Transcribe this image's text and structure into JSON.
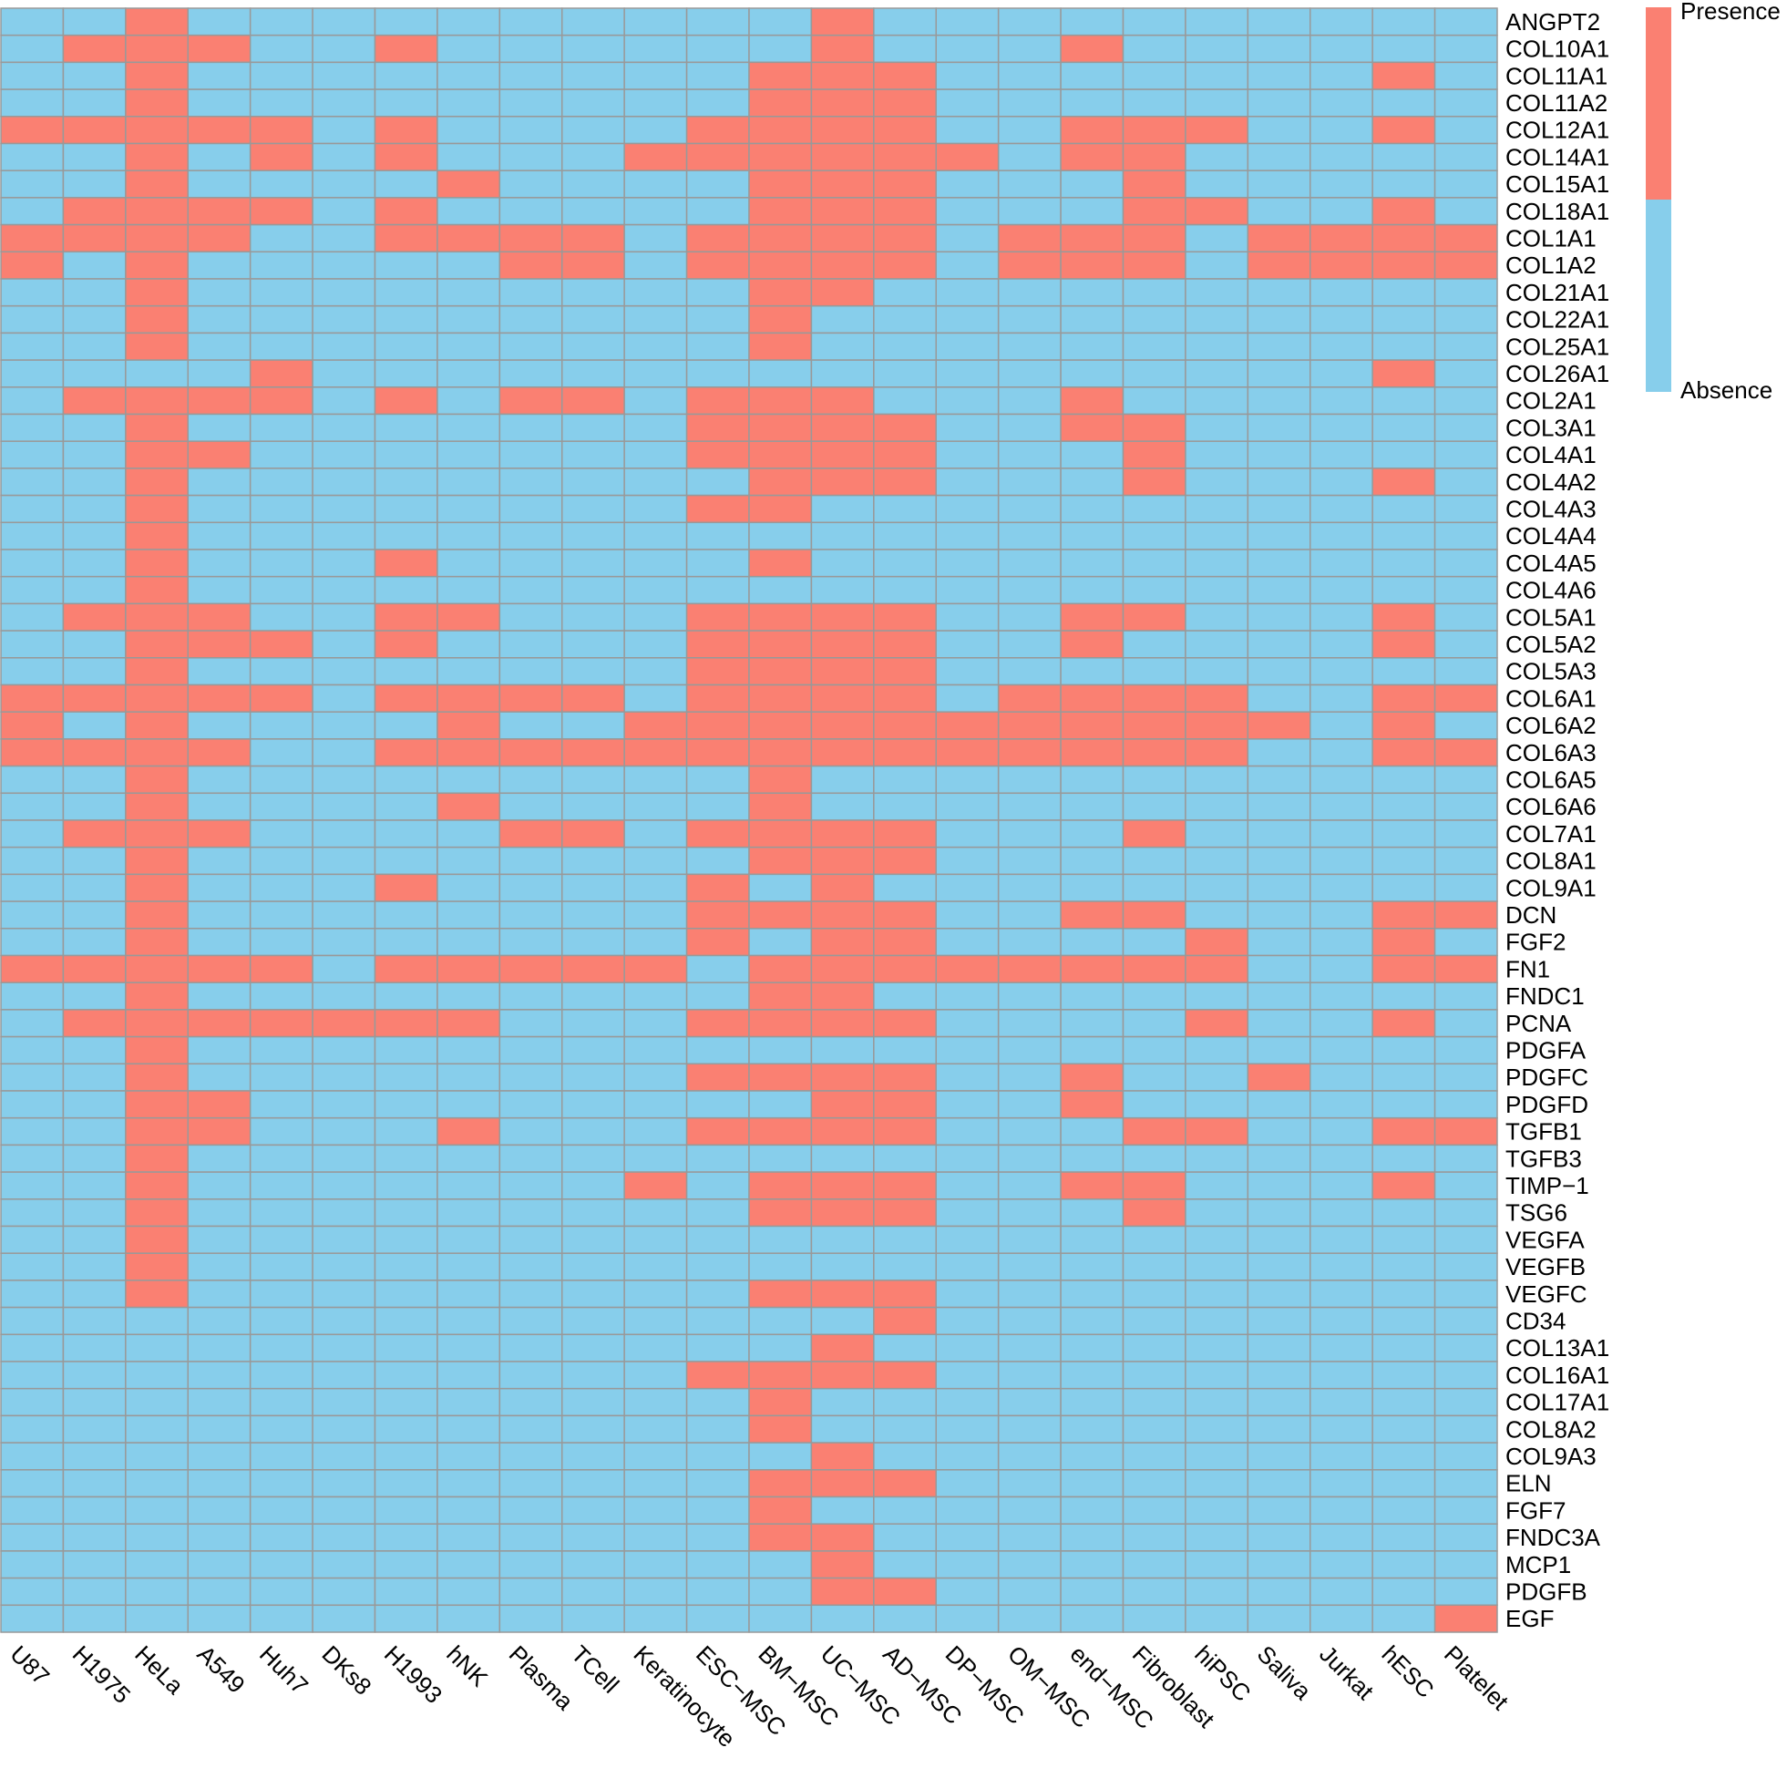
{
  "chart_data": {
    "type": "heatmap",
    "title": "",
    "xlabel": "",
    "ylabel": "",
    "columns": [
      "U87",
      "H1975",
      "HeLa",
      "A549",
      "Huh7",
      "DKs8",
      "H1993",
      "hNK",
      "Plasma",
      "TCell",
      "Keratinocyte",
      "ESC−MSC",
      "BM−MSC",
      "UC−MSC",
      "AD−MSC",
      "DP−MSC",
      "OM−MSC",
      "end−MSC",
      "Fibroblast",
      "hiPSC",
      "Saliva",
      "Jurkat",
      "hESC",
      "Platelet"
    ],
    "rows": [
      "ANGPT2",
      "COL10A1",
      "COL11A1",
      "COL11A2",
      "COL12A1",
      "COL14A1",
      "COL15A1",
      "COL18A1",
      "COL1A1",
      "COL1A2",
      "COL21A1",
      "COL22A1",
      "COL25A1",
      "COL26A1",
      "COL2A1",
      "COL3A1",
      "COL4A1",
      "COL4A2",
      "COL4A3",
      "COL4A4",
      "COL4A5",
      "COL4A6",
      "COL5A1",
      "COL5A2",
      "COL5A3",
      "COL6A1",
      "COL6A2",
      "COL6A3",
      "COL6A5",
      "COL6A6",
      "COL7A1",
      "COL8A1",
      "COL9A1",
      "DCN",
      "FGF2",
      "FN1",
      "FNDC1",
      "PCNA",
      "PDGFA",
      "PDGFC",
      "PDGFD",
      "TGFB1",
      "TGFB3",
      "TIMP−1",
      "TSG6",
      "VEGFA",
      "VEGFB",
      "VEGFC",
      "CD34",
      "COL13A1",
      "COL16A1",
      "COL17A1",
      "COL8A2",
      "COL9A3",
      "ELN",
      "FGF7",
      "FNDC3A",
      "MCP1",
      "PDGFB",
      "EGF"
    ],
    "values": [
      [
        0,
        0,
        1,
        0,
        0,
        0,
        0,
        0,
        0,
        0,
        0,
        0,
        0,
        1,
        0,
        0,
        0,
        0,
        0,
        0,
        0,
        0,
        0,
        0
      ],
      [
        0,
        1,
        1,
        1,
        0,
        0,
        1,
        0,
        0,
        0,
        0,
        0,
        0,
        1,
        0,
        0,
        0,
        1,
        0,
        0,
        0,
        0,
        0,
        0
      ],
      [
        0,
        0,
        1,
        0,
        0,
        0,
        0,
        0,
        0,
        0,
        0,
        0,
        1,
        1,
        1,
        0,
        0,
        0,
        0,
        0,
        0,
        0,
        1,
        0
      ],
      [
        0,
        0,
        1,
        0,
        0,
        0,
        0,
        0,
        0,
        0,
        0,
        0,
        1,
        1,
        1,
        0,
        0,
        0,
        0,
        0,
        0,
        0,
        0,
        0
      ],
      [
        1,
        1,
        1,
        1,
        1,
        0,
        1,
        0,
        0,
        0,
        0,
        1,
        1,
        1,
        1,
        0,
        0,
        1,
        1,
        1,
        0,
        0,
        1,
        0
      ],
      [
        0,
        0,
        1,
        0,
        1,
        0,
        1,
        0,
        0,
        0,
        1,
        1,
        1,
        1,
        1,
        1,
        0,
        1,
        1,
        0,
        0,
        0,
        0,
        0
      ],
      [
        0,
        0,
        1,
        0,
        0,
        0,
        0,
        1,
        0,
        0,
        0,
        0,
        1,
        1,
        1,
        0,
        0,
        0,
        1,
        0,
        0,
        0,
        0,
        0
      ],
      [
        0,
        1,
        1,
        1,
        1,
        0,
        1,
        0,
        0,
        0,
        0,
        0,
        1,
        1,
        1,
        0,
        0,
        0,
        1,
        1,
        0,
        0,
        1,
        0
      ],
      [
        1,
        1,
        1,
        1,
        0,
        0,
        1,
        1,
        1,
        1,
        0,
        1,
        1,
        1,
        1,
        0,
        1,
        1,
        1,
        0,
        1,
        1,
        1,
        1
      ],
      [
        1,
        0,
        1,
        0,
        0,
        0,
        0,
        0,
        1,
        1,
        0,
        1,
        1,
        1,
        1,
        0,
        1,
        1,
        1,
        0,
        1,
        1,
        1,
        1
      ],
      [
        0,
        0,
        1,
        0,
        0,
        0,
        0,
        0,
        0,
        0,
        0,
        0,
        1,
        1,
        0,
        0,
        0,
        0,
        0,
        0,
        0,
        0,
        0,
        0
      ],
      [
        0,
        0,
        1,
        0,
        0,
        0,
        0,
        0,
        0,
        0,
        0,
        0,
        1,
        0,
        0,
        0,
        0,
        0,
        0,
        0,
        0,
        0,
        0,
        0
      ],
      [
        0,
        0,
        1,
        0,
        0,
        0,
        0,
        0,
        0,
        0,
        0,
        0,
        1,
        0,
        0,
        0,
        0,
        0,
        0,
        0,
        0,
        0,
        0,
        0
      ],
      [
        0,
        0,
        0,
        0,
        1,
        0,
        0,
        0,
        0,
        0,
        0,
        0,
        0,
        0,
        0,
        0,
        0,
        0,
        0,
        0,
        0,
        0,
        1,
        0
      ],
      [
        0,
        1,
        1,
        1,
        1,
        0,
        1,
        0,
        1,
        1,
        0,
        1,
        1,
        1,
        0,
        0,
        0,
        1,
        0,
        0,
        0,
        0,
        0,
        0
      ],
      [
        0,
        0,
        1,
        0,
        0,
        0,
        0,
        0,
        0,
        0,
        0,
        1,
        1,
        1,
        1,
        0,
        0,
        1,
        1,
        0,
        0,
        0,
        0,
        0
      ],
      [
        0,
        0,
        1,
        1,
        0,
        0,
        0,
        0,
        0,
        0,
        0,
        1,
        1,
        1,
        1,
        0,
        0,
        0,
        1,
        0,
        0,
        0,
        0,
        0
      ],
      [
        0,
        0,
        1,
        0,
        0,
        0,
        0,
        0,
        0,
        0,
        0,
        0,
        1,
        1,
        1,
        0,
        0,
        0,
        1,
        0,
        0,
        0,
        1,
        0
      ],
      [
        0,
        0,
        1,
        0,
        0,
        0,
        0,
        0,
        0,
        0,
        0,
        1,
        1,
        0,
        0,
        0,
        0,
        0,
        0,
        0,
        0,
        0,
        0,
        0
      ],
      [
        0,
        0,
        1,
        0,
        0,
        0,
        0,
        0,
        0,
        0,
        0,
        0,
        0,
        0,
        0,
        0,
        0,
        0,
        0,
        0,
        0,
        0,
        0,
        0
      ],
      [
        0,
        0,
        1,
        0,
        0,
        0,
        1,
        0,
        0,
        0,
        0,
        0,
        1,
        0,
        0,
        0,
        0,
        0,
        0,
        0,
        0,
        0,
        0,
        0
      ],
      [
        0,
        0,
        1,
        0,
        0,
        0,
        0,
        0,
        0,
        0,
        0,
        0,
        0,
        0,
        0,
        0,
        0,
        0,
        0,
        0,
        0,
        0,
        0,
        0
      ],
      [
        0,
        1,
        1,
        1,
        0,
        0,
        1,
        1,
        0,
        0,
        0,
        1,
        1,
        1,
        1,
        0,
        0,
        1,
        1,
        0,
        0,
        0,
        1,
        0
      ],
      [
        0,
        0,
        1,
        1,
        1,
        0,
        1,
        0,
        0,
        0,
        0,
        1,
        1,
        1,
        1,
        0,
        0,
        1,
        0,
        0,
        0,
        0,
        1,
        0
      ],
      [
        0,
        0,
        1,
        0,
        0,
        0,
        0,
        0,
        0,
        0,
        0,
        1,
        1,
        1,
        1,
        0,
        0,
        0,
        0,
        0,
        0,
        0,
        0,
        0
      ],
      [
        1,
        1,
        1,
        1,
        1,
        0,
        1,
        1,
        1,
        1,
        0,
        1,
        1,
        1,
        1,
        0,
        1,
        1,
        1,
        1,
        0,
        0,
        1,
        1
      ],
      [
        1,
        0,
        1,
        0,
        0,
        0,
        0,
        1,
        0,
        0,
        1,
        1,
        1,
        1,
        1,
        1,
        1,
        1,
        1,
        1,
        1,
        0,
        1,
        0
      ],
      [
        1,
        1,
        1,
        1,
        0,
        0,
        1,
        1,
        1,
        1,
        1,
        1,
        1,
        1,
        1,
        1,
        1,
        1,
        1,
        1,
        0,
        0,
        1,
        1
      ],
      [
        0,
        0,
        1,
        0,
        0,
        0,
        0,
        0,
        0,
        0,
        0,
        0,
        1,
        0,
        0,
        0,
        0,
        0,
        0,
        0,
        0,
        0,
        0,
        0
      ],
      [
        0,
        0,
        1,
        0,
        0,
        0,
        0,
        1,
        0,
        0,
        0,
        0,
        1,
        0,
        0,
        0,
        0,
        0,
        0,
        0,
        0,
        0,
        0,
        0
      ],
      [
        0,
        1,
        1,
        1,
        0,
        0,
        0,
        0,
        1,
        1,
        0,
        1,
        1,
        1,
        1,
        0,
        0,
        0,
        1,
        0,
        0,
        0,
        0,
        0
      ],
      [
        0,
        0,
        1,
        0,
        0,
        0,
        0,
        0,
        0,
        0,
        0,
        0,
        1,
        1,
        1,
        0,
        0,
        0,
        0,
        0,
        0,
        0,
        0,
        0
      ],
      [
        0,
        0,
        1,
        0,
        0,
        0,
        1,
        0,
        0,
        0,
        0,
        1,
        0,
        1,
        0,
        0,
        0,
        0,
        0,
        0,
        0,
        0,
        0,
        0
      ],
      [
        0,
        0,
        1,
        0,
        0,
        0,
        0,
        0,
        0,
        0,
        0,
        1,
        1,
        1,
        1,
        0,
        0,
        1,
        1,
        0,
        0,
        0,
        1,
        1
      ],
      [
        0,
        0,
        1,
        0,
        0,
        0,
        0,
        0,
        0,
        0,
        0,
        1,
        0,
        1,
        1,
        0,
        0,
        0,
        0,
        1,
        0,
        0,
        1,
        0
      ],
      [
        1,
        1,
        1,
        1,
        1,
        0,
        1,
        1,
        1,
        1,
        1,
        0,
        1,
        1,
        1,
        1,
        1,
        1,
        1,
        1,
        0,
        0,
        1,
        1
      ],
      [
        0,
        0,
        1,
        0,
        0,
        0,
        0,
        0,
        0,
        0,
        0,
        0,
        1,
        1,
        0,
        0,
        0,
        0,
        0,
        0,
        0,
        0,
        0,
        0
      ],
      [
        0,
        1,
        1,
        1,
        1,
        1,
        1,
        1,
        0,
        0,
        0,
        1,
        1,
        1,
        1,
        0,
        0,
        0,
        0,
        1,
        0,
        0,
        1,
        0
      ],
      [
        0,
        0,
        1,
        0,
        0,
        0,
        0,
        0,
        0,
        0,
        0,
        0,
        0,
        0,
        0,
        0,
        0,
        0,
        0,
        0,
        0,
        0,
        0,
        0
      ],
      [
        0,
        0,
        1,
        0,
        0,
        0,
        0,
        0,
        0,
        0,
        0,
        1,
        1,
        1,
        1,
        0,
        0,
        1,
        0,
        0,
        1,
        0,
        0,
        0
      ],
      [
        0,
        0,
        1,
        1,
        0,
        0,
        0,
        0,
        0,
        0,
        0,
        0,
        0,
        1,
        1,
        0,
        0,
        1,
        0,
        0,
        0,
        0,
        0,
        0
      ],
      [
        0,
        0,
        1,
        1,
        0,
        0,
        0,
        1,
        0,
        0,
        0,
        1,
        1,
        1,
        1,
        0,
        0,
        0,
        1,
        1,
        0,
        0,
        1,
        1
      ],
      [
        0,
        0,
        1,
        0,
        0,
        0,
        0,
        0,
        0,
        0,
        0,
        0,
        0,
        0,
        0,
        0,
        0,
        0,
        0,
        0,
        0,
        0,
        0,
        0
      ],
      [
        0,
        0,
        1,
        0,
        0,
        0,
        0,
        0,
        0,
        0,
        1,
        0,
        1,
        1,
        1,
        0,
        0,
        1,
        1,
        0,
        0,
        0,
        1,
        0
      ],
      [
        0,
        0,
        1,
        0,
        0,
        0,
        0,
        0,
        0,
        0,
        0,
        0,
        1,
        1,
        1,
        0,
        0,
        0,
        1,
        0,
        0,
        0,
        0,
        0
      ],
      [
        0,
        0,
        1,
        0,
        0,
        0,
        0,
        0,
        0,
        0,
        0,
        0,
        0,
        0,
        0,
        0,
        0,
        0,
        0,
        0,
        0,
        0,
        0,
        0
      ],
      [
        0,
        0,
        1,
        0,
        0,
        0,
        0,
        0,
        0,
        0,
        0,
        0,
        0,
        0,
        0,
        0,
        0,
        0,
        0,
        0,
        0,
        0,
        0,
        0
      ],
      [
        0,
        0,
        1,
        0,
        0,
        0,
        0,
        0,
        0,
        0,
        0,
        0,
        1,
        1,
        1,
        0,
        0,
        0,
        0,
        0,
        0,
        0,
        0,
        0
      ],
      [
        0,
        0,
        0,
        0,
        0,
        0,
        0,
        0,
        0,
        0,
        0,
        0,
        0,
        0,
        1,
        0,
        0,
        0,
        0,
        0,
        0,
        0,
        0,
        0
      ],
      [
        0,
        0,
        0,
        0,
        0,
        0,
        0,
        0,
        0,
        0,
        0,
        0,
        0,
        1,
        0,
        0,
        0,
        0,
        0,
        0,
        0,
        0,
        0,
        0
      ],
      [
        0,
        0,
        0,
        0,
        0,
        0,
        0,
        0,
        0,
        0,
        0,
        1,
        1,
        1,
        1,
        0,
        0,
        0,
        0,
        0,
        0,
        0,
        0,
        0
      ],
      [
        0,
        0,
        0,
        0,
        0,
        0,
        0,
        0,
        0,
        0,
        0,
        0,
        1,
        0,
        0,
        0,
        0,
        0,
        0,
        0,
        0,
        0,
        0,
        0
      ],
      [
        0,
        0,
        0,
        0,
        0,
        0,
        0,
        0,
        0,
        0,
        0,
        0,
        1,
        0,
        0,
        0,
        0,
        0,
        0,
        0,
        0,
        0,
        0,
        0
      ],
      [
        0,
        0,
        0,
        0,
        0,
        0,
        0,
        0,
        0,
        0,
        0,
        0,
        0,
        1,
        0,
        0,
        0,
        0,
        0,
        0,
        0,
        0,
        0,
        0
      ],
      [
        0,
        0,
        0,
        0,
        0,
        0,
        0,
        0,
        0,
        0,
        0,
        0,
        1,
        1,
        1,
        0,
        0,
        0,
        0,
        0,
        0,
        0,
        0,
        0
      ],
      [
        0,
        0,
        0,
        0,
        0,
        0,
        0,
        0,
        0,
        0,
        0,
        0,
        1,
        0,
        0,
        0,
        0,
        0,
        0,
        0,
        0,
        0,
        0,
        0
      ],
      [
        0,
        0,
        0,
        0,
        0,
        0,
        0,
        0,
        0,
        0,
        0,
        0,
        1,
        1,
        0,
        0,
        0,
        0,
        0,
        0,
        0,
        0,
        0,
        0
      ],
      [
        0,
        0,
        0,
        0,
        0,
        0,
        0,
        0,
        0,
        0,
        0,
        0,
        0,
        1,
        0,
        0,
        0,
        0,
        0,
        0,
        0,
        0,
        0,
        0
      ],
      [
        0,
        0,
        0,
        0,
        0,
        0,
        0,
        0,
        0,
        0,
        0,
        0,
        0,
        1,
        1,
        0,
        0,
        0,
        0,
        0,
        0,
        0,
        0,
        0
      ],
      [
        0,
        0,
        0,
        0,
        0,
        0,
        0,
        0,
        0,
        0,
        0,
        0,
        0,
        0,
        0,
        0,
        0,
        0,
        0,
        0,
        0,
        0,
        0,
        1
      ]
    ],
    "legend": {
      "placement": "top-right",
      "labels": [
        "Presence",
        "Absence"
      ]
    },
    "colors": {
      "presence": "#fa8072",
      "absence": "#87ceeb",
      "grid": "#999999"
    }
  }
}
